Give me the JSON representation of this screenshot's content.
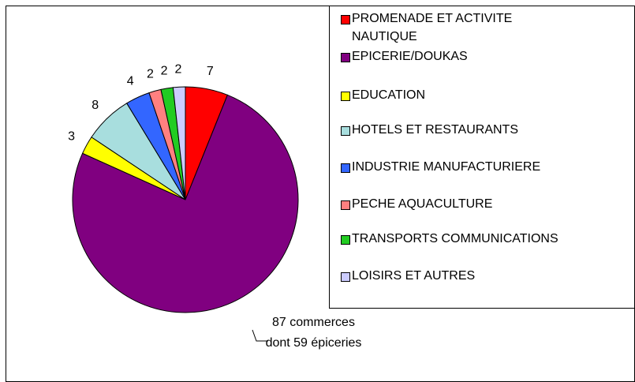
{
  "chart_data": {
    "type": "pie",
    "categories": [
      "PROMENADE ET ACTIVITE NAUTIQUE",
      "EPICERIE/DOUKAS",
      "EDUCATION",
      "HOTELS ET RESTAURANTS",
      "INDUSTRIE MANUFACTURIERE",
      "PECHE AQUACULTURE",
      "TRANSPORTS COMMUNICATIONS",
      "LOISIRS ET AUTRES"
    ],
    "values": [
      7,
      87,
      3,
      8,
      4,
      2,
      2,
      2
    ],
    "value_labels": [
      "7",
      "87 commerces dont 59 épiceries",
      "3",
      "8",
      "4",
      "2",
      "2",
      "2"
    ],
    "colors": [
      "#ff0000",
      "#800080",
      "#ffff00",
      "#a8dede",
      "#3366ff",
      "#ff8080",
      "#22cc22",
      "#ccccff"
    ],
    "legend": "right"
  }
}
